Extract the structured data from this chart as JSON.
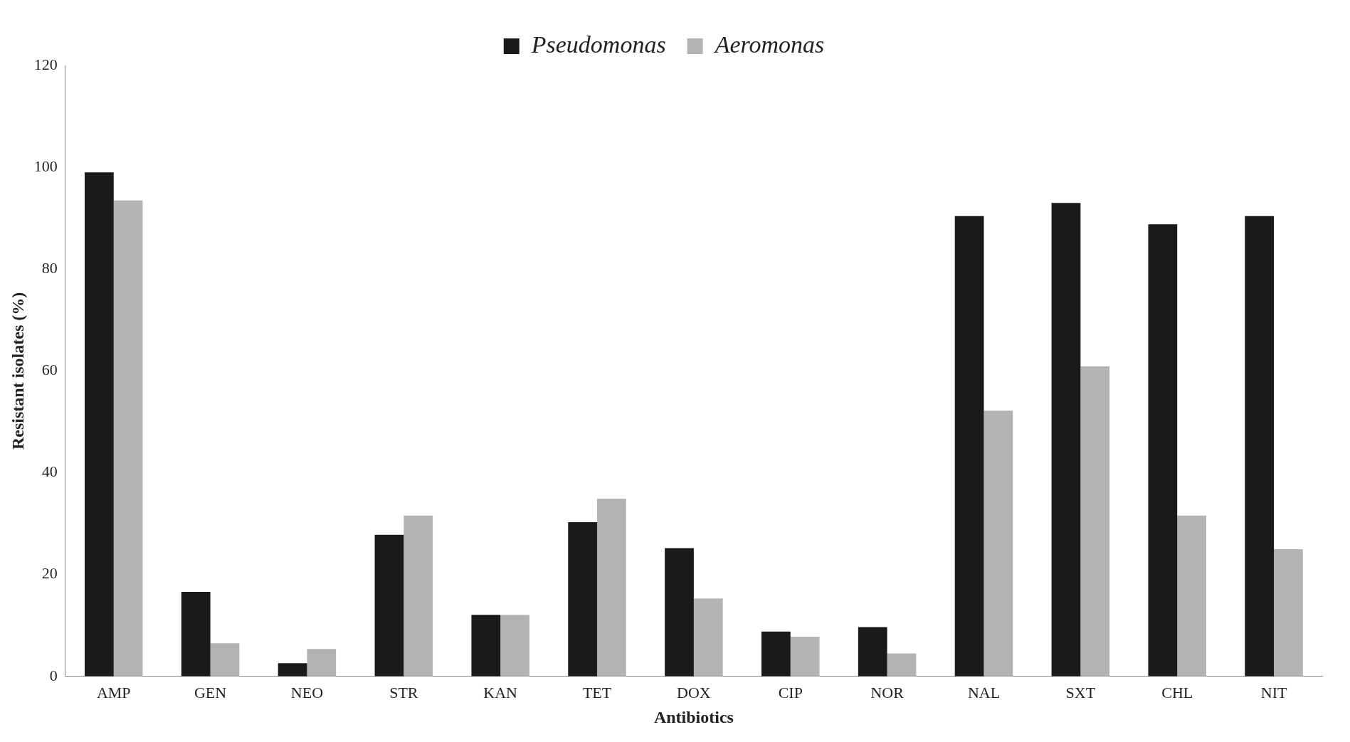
{
  "chart_data": {
    "type": "bar",
    "xlabel": "Antibiotics",
    "ylabel": "Resistant isolates (%)",
    "categories": [
      "AMP",
      "GEN",
      "NEO",
      "STR",
      "KAN",
      "TET",
      "DOX",
      "CIP",
      "NOR",
      "NAL",
      "SXT",
      "CHL",
      "NIT"
    ],
    "series": [
      {
        "name": "Pseudomonas",
        "color": "#1a1a1a",
        "values": [
          99,
          16.6,
          2.6,
          27.8,
          12.1,
          30.3,
          25.2,
          8.8,
          9.7,
          90.4,
          93,
          88.8,
          90.4
        ]
      },
      {
        "name": "Aeromonas",
        "color": "#b3b3b3",
        "values": [
          93.5,
          6.5,
          5.4,
          31.6,
          12.1,
          34.9,
          15.3,
          7.8,
          4.5,
          52.2,
          60.9,
          31.6,
          25
        ]
      }
    ],
    "ylim": [
      0,
      120
    ],
    "yticks": [
      0,
      20,
      40,
      60,
      80,
      100,
      120
    ],
    "grid": false,
    "legend": "top"
  }
}
